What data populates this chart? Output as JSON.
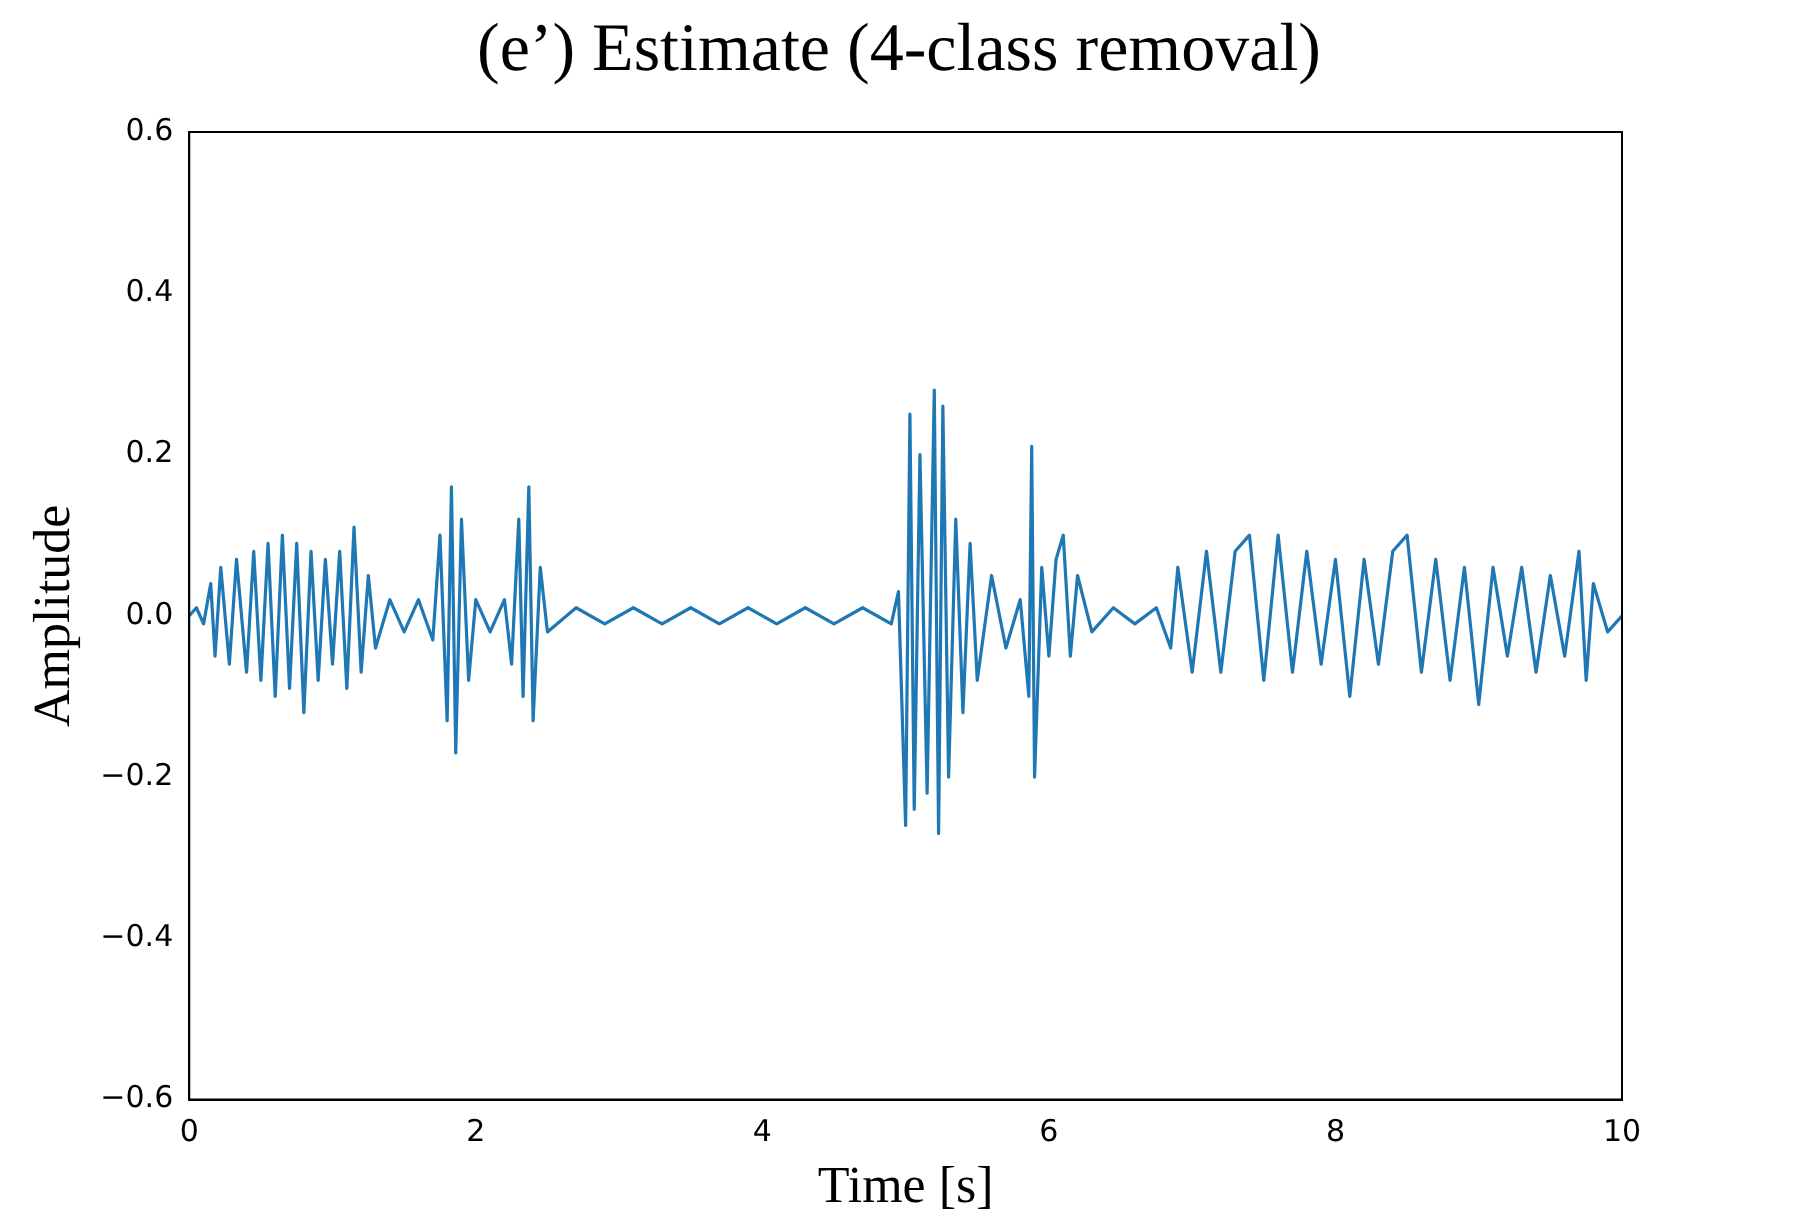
{
  "chart_data": {
    "type": "line",
    "title": "(e’) Estimate (4-class removal)",
    "xlabel": "Time [s]",
    "ylabel": "Amplitude",
    "xlim": [
      0,
      10
    ],
    "xticks": [
      0,
      2,
      4,
      6,
      8,
      10
    ],
    "ylim": [
      -0.6,
      0.6
    ],
    "yticks": [
      {
        "value": -0.6,
        "label": "−0.6"
      },
      {
        "value": -0.4,
        "label": "−0.4"
      },
      {
        "value": -0.2,
        "label": "−0.2"
      },
      {
        "value": 0,
        "label": "0.0"
      },
      {
        "value": 0.2,
        "label": "0.2"
      },
      {
        "value": 0.4,
        "label": "0.4"
      },
      {
        "value": 0.6,
        "label": "0.6"
      }
    ],
    "grid": false,
    "legend": false,
    "marker": "none",
    "series": [
      {
        "color": "#1f77b4",
        "x": [
          0,
          0.05,
          0.1,
          0.15,
          0.18,
          0.22,
          0.28,
          0.33,
          0.4,
          0.45,
          0.5,
          0.55,
          0.6,
          0.65,
          0.7,
          0.75,
          0.8,
          0.85,
          0.9,
          0.95,
          1.0,
          1.05,
          1.1,
          1.15,
          1.2,
          1.25,
          1.3,
          1.4,
          1.5,
          1.6,
          1.7,
          1.75,
          1.8,
          1.83,
          1.86,
          1.9,
          1.95,
          2.0,
          2.1,
          2.2,
          2.25,
          2.3,
          2.33,
          2.37,
          2.4,
          2.45,
          2.5,
          2.7,
          2.9,
          3.1,
          3.3,
          3.5,
          3.7,
          3.9,
          4.1,
          4.3,
          4.5,
          4.7,
          4.9,
          4.95,
          5.0,
          5.03,
          5.06,
          5.1,
          5.15,
          5.2,
          5.23,
          5.26,
          5.3,
          5.35,
          5.4,
          5.45,
          5.5,
          5.6,
          5.7,
          5.8,
          5.86,
          5.88,
          5.9,
          5.95,
          6.0,
          6.05,
          6.1,
          6.15,
          6.2,
          6.3,
          6.45,
          6.6,
          6.75,
          6.85,
          6.9,
          7.0,
          7.1,
          7.2,
          7.3,
          7.4,
          7.5,
          7.6,
          7.7,
          7.8,
          7.9,
          8.0,
          8.1,
          8.2,
          8.3,
          8.4,
          8.5,
          8.6,
          8.7,
          8.8,
          8.9,
          9.0,
          9.1,
          9.2,
          9.3,
          9.4,
          9.5,
          9.6,
          9.7,
          9.75,
          9.8,
          9.9,
          10
        ],
        "values": [
          0,
          0.01,
          -0.01,
          0.04,
          -0.05,
          0.06,
          -0.06,
          0.07,
          -0.07,
          0.08,
          -0.08,
          0.09,
          -0.1,
          0.1,
          -0.09,
          0.09,
          -0.12,
          0.08,
          -0.08,
          0.07,
          -0.06,
          0.08,
          -0.09,
          0.11,
          -0.07,
          0.05,
          -0.04,
          0.02,
          -0.02,
          0.02,
          -0.03,
          0.1,
          -0.13,
          0.16,
          -0.17,
          0.12,
          -0.08,
          0.02,
          -0.02,
          0.02,
          -0.06,
          0.12,
          -0.1,
          0.16,
          -0.13,
          0.06,
          -0.02,
          0.01,
          -0.01,
          0.01,
          -0.01,
          0.01,
          -0.01,
          0.01,
          -0.01,
          0.01,
          -0.01,
          0.01,
          -0.01,
          0.03,
          -0.26,
          0.25,
          -0.24,
          0.2,
          -0.22,
          0.28,
          -0.27,
          0.26,
          -0.2,
          0.12,
          -0.12,
          0.09,
          -0.08,
          0.05,
          -0.04,
          0.02,
          -0.1,
          0.21,
          -0.2,
          0.06,
          -0.05,
          0.07,
          0.1,
          -0.05,
          0.05,
          -0.02,
          0.01,
          -0.01,
          0.01,
          -0.04,
          0.06,
          -0.07,
          0.08,
          -0.07,
          0.08,
          0.1,
          -0.08,
          0.1,
          -0.07,
          0.08,
          -0.06,
          0.07,
          -0.1,
          0.07,
          -0.06,
          0.08,
          0.1,
          -0.07,
          0.07,
          -0.08,
          0.06,
          -0.11,
          0.06,
          -0.05,
          0.06,
          -0.07,
          0.05,
          -0.05,
          0.08,
          -0.08,
          0.04,
          -0.02,
          0
        ]
      }
    ]
  }
}
